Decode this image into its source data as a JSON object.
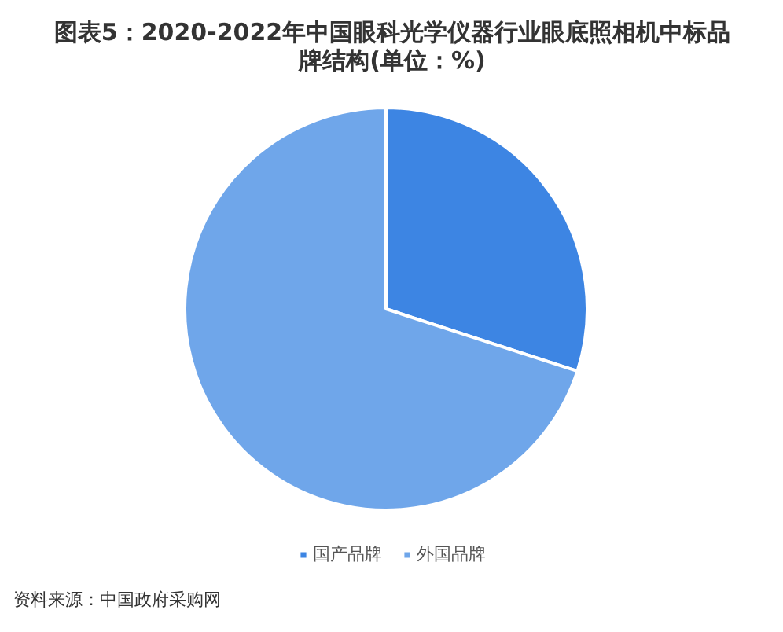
{
  "chart_data": {
    "type": "pie",
    "title": "图表5：2020-2022年中国眼科光学仪器行业眼底照相机中标品牌结构(单位：%)",
    "categories": [
      "国产品牌",
      "外国品牌"
    ],
    "values": [
      30,
      70
    ],
    "colors": [
      "#3d85e3",
      "#6fa6ea"
    ],
    "legend": "bottom",
    "annotations": [
      "资料来源：中国政府采购网"
    ]
  }
}
